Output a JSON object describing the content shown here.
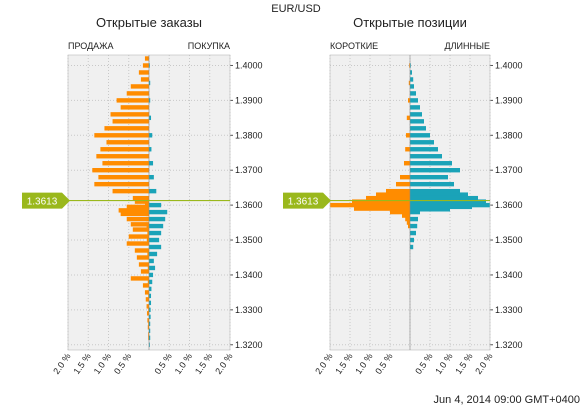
{
  "pair": "EUR/USD",
  "timestamp": "Jun 4, 2014 09:00 GMT+0400",
  "current_price": "1.3613",
  "colors": {
    "orange": "#ff8c00",
    "teal": "#1aa3b8",
    "price_line": "#9ab81c",
    "plot_bg": "#f0f0f0",
    "grid": "#c8c8c8"
  },
  "chart_data": [
    {
      "type": "bar",
      "title": "Открытые заказы",
      "left_label": "ПРОДАЖА",
      "right_label": "ПОКУПКА",
      "orientation": "horizontal-diverging",
      "y_ticks": [
        "1.4000",
        "1.3900",
        "1.3800",
        "1.3700",
        "1.3600",
        "1.3500",
        "1.3400",
        "1.3300",
        "1.3200"
      ],
      "x_ticks": [
        "2.0 %",
        "1.5 %",
        "1.0 %",
        "0.5 %",
        "",
        "0.5 %",
        "1.0 %",
        "1.5 %",
        "2.0 %"
      ],
      "ylim": [
        1.3185,
        1.403
      ],
      "xlim": [
        -2.0,
        2.0
      ],
      "series": [
        {
          "name": "ПРОДАЖА",
          "color": "orange",
          "points": [
            [
              1.402,
              0.1
            ],
            [
              1.4,
              0.15
            ],
            [
              1.398,
              0.25
            ],
            [
              1.396,
              0.2
            ],
            [
              1.394,
              0.45
            ],
            [
              1.392,
              0.55
            ],
            [
              1.39,
              0.8
            ],
            [
              1.388,
              0.7
            ],
            [
              1.386,
              0.95
            ],
            [
              1.384,
              0.9
            ],
            [
              1.382,
              1.1
            ],
            [
              1.38,
              1.35
            ],
            [
              1.378,
              1.05
            ],
            [
              1.376,
              1.2
            ],
            [
              1.374,
              1.3
            ],
            [
              1.372,
              1.15
            ],
            [
              1.37,
              1.4
            ],
            [
              1.368,
              1.25
            ],
            [
              1.366,
              1.35
            ],
            [
              1.364,
              0.9
            ],
            [
              1.362,
              0.4
            ],
            [
              1.36,
              0.1
            ],
            [
              1.358,
              0.05
            ],
            [
              1.356,
              0.08
            ],
            [
              1.354,
              0.06
            ],
            [
              1.352,
              0.04
            ],
            [
              1.35,
              0.05
            ],
            [
              1.346,
              0.04
            ],
            [
              1.342,
              0.03
            ],
            [
              1.338,
              0.03
            ],
            [
              1.334,
              0.02
            ],
            [
              1.33,
              0.02
            ],
            [
              1.326,
              0.02
            ],
            [
              1.322,
              0.02
            ]
          ]
        },
        {
          "name": "ПОКУПКА",
          "color": "teal",
          "points": [
            [
              1.4,
              0.02
            ],
            [
              1.395,
              0.03
            ],
            [
              1.39,
              0.03
            ],
            [
              1.385,
              0.05
            ],
            [
              1.38,
              0.08
            ],
            [
              1.376,
              0.06
            ],
            [
              1.372,
              0.1
            ],
            [
              1.368,
              0.12
            ],
            [
              1.364,
              0.18
            ],
            [
              1.36,
              0.3
            ],
            [
              1.358,
              0.45
            ],
            [
              1.356,
              0.4
            ],
            [
              1.354,
              0.35
            ],
            [
              1.352,
              0.3
            ],
            [
              1.35,
              0.25
            ],
            [
              1.348,
              0.3
            ],
            [
              1.346,
              0.2
            ],
            [
              1.344,
              0.12
            ],
            [
              1.342,
              0.15
            ],
            [
              1.34,
              0.1
            ],
            [
              1.338,
              0.08
            ],
            [
              1.336,
              0.06
            ],
            [
              1.334,
              0.05
            ],
            [
              1.332,
              0.05
            ],
            [
              1.33,
              0.04
            ],
            [
              1.328,
              0.04
            ],
            [
              1.326,
              0.03
            ],
            [
              1.324,
              0.03
            ],
            [
              1.322,
              0.03
            ],
            [
              1.32,
              0.02
            ]
          ]
        },
        {
          "name": "ПРОДАЖА",
          "color": "orange",
          "points": [
            [
              1.361,
              0.35
            ],
            [
              1.3595,
              0.55
            ],
            [
              1.3585,
              0.75
            ],
            [
              1.3575,
              0.7
            ],
            [
              1.356,
              0.55
            ],
            [
              1.3545,
              0.45
            ],
            [
              1.353,
              0.4
            ],
            [
              1.351,
              0.5
            ],
            [
              1.349,
              0.55
            ],
            [
              1.347,
              0.35
            ],
            [
              1.345,
              0.3
            ],
            [
              1.343,
              0.25
            ],
            [
              1.341,
              0.2
            ],
            [
              1.339,
              0.45
            ],
            [
              1.337,
              0.15
            ],
            [
              1.335,
              0.1
            ],
            [
              1.333,
              0.08
            ],
            [
              1.331,
              0.06
            ],
            [
              1.329,
              0.05
            ],
            [
              1.327,
              0.04
            ],
            [
              1.325,
              0.03
            ],
            [
              1.323,
              0.02
            ]
          ]
        }
      ]
    },
    {
      "type": "bar",
      "title": "Открытые позиции",
      "left_label": "КОРОТКИЕ",
      "right_label": "ДЛИННЫЕ",
      "orientation": "horizontal-diverging",
      "y_ticks": [
        "1.4000",
        "1.3900",
        "1.3800",
        "1.3700",
        "1.3600",
        "1.3500",
        "1.3400",
        "1.3300",
        "1.3200"
      ],
      "x_ticks": [
        "2.0 %",
        "1.5 %",
        "1.0 %",
        "0.5 %",
        "",
        "0.5 %",
        "1.0 %",
        "1.5 %",
        "2.0 %"
      ],
      "ylim": [
        1.3185,
        1.403
      ],
      "xlim": [
        -2.0,
        2.0
      ],
      "series": [
        {
          "name": "КОРОТКИЕ",
          "color": "orange",
          "points": [
            [
              1.4,
              0.02
            ],
            [
              1.395,
              0.03
            ],
            [
              1.39,
              0.05
            ],
            [
              1.385,
              0.08
            ],
            [
              1.38,
              0.1
            ],
            [
              1.376,
              0.12
            ],
            [
              1.372,
              0.15
            ],
            [
              1.368,
              0.25
            ],
            [
              1.366,
              0.35
            ],
            [
              1.364,
              0.6
            ],
            [
              1.363,
              0.85
            ],
            [
              1.362,
              1.1
            ],
            [
              1.361,
              1.45
            ],
            [
              1.36,
              2.0
            ],
            [
              1.359,
              1.4
            ],
            [
              1.358,
              0.5
            ],
            [
              1.357,
              0.2
            ],
            [
              1.356,
              0.12
            ],
            [
              1.355,
              0.08
            ],
            [
              1.354,
              0.05
            ]
          ]
        },
        {
          "name": "ДЛИННЫЕ",
          "color": "teal",
          "points": [
            [
              1.4,
              0.02
            ],
            [
              1.398,
              0.05
            ],
            [
              1.396,
              0.08
            ],
            [
              1.394,
              0.1
            ],
            [
              1.392,
              0.15
            ],
            [
              1.39,
              0.2
            ],
            [
              1.388,
              0.25
            ],
            [
              1.386,
              0.3
            ],
            [
              1.384,
              0.35
            ],
            [
              1.382,
              0.4
            ],
            [
              1.38,
              0.5
            ],
            [
              1.378,
              0.6
            ],
            [
              1.376,
              0.7
            ],
            [
              1.374,
              0.8
            ],
            [
              1.372,
              1.05
            ],
            [
              1.37,
              1.25
            ],
            [
              1.368,
              0.95
            ],
            [
              1.366,
              1.1
            ],
            [
              1.364,
              1.25
            ],
            [
              1.363,
              1.45
            ],
            [
              1.362,
              1.7
            ],
            [
              1.361,
              1.9
            ],
            [
              1.36,
              2.0
            ],
            [
              1.359,
              0.45
            ],
            [
              1.358,
              0.25
            ],
            [
              1.356,
              0.2
            ],
            [
              1.354,
              0.18
            ],
            [
              1.352,
              0.15
            ],
            [
              1.35,
              0.1
            ],
            [
              1.348,
              0.08
            ]
          ]
        },
        {
          "name": "КОРОТКИЕ",
          "color": "orange",
          "points": [
            [
              1.3605,
              1.2
            ],
            [
              1.36,
              1.0
            ]
          ]
        },
        {
          "name": "ДЛИННЫЕ",
          "color": "teal",
          "points": [
            [
              1.3595,
              1.55
            ],
            [
              1.3588,
              1.0
            ]
          ]
        }
      ]
    }
  ]
}
